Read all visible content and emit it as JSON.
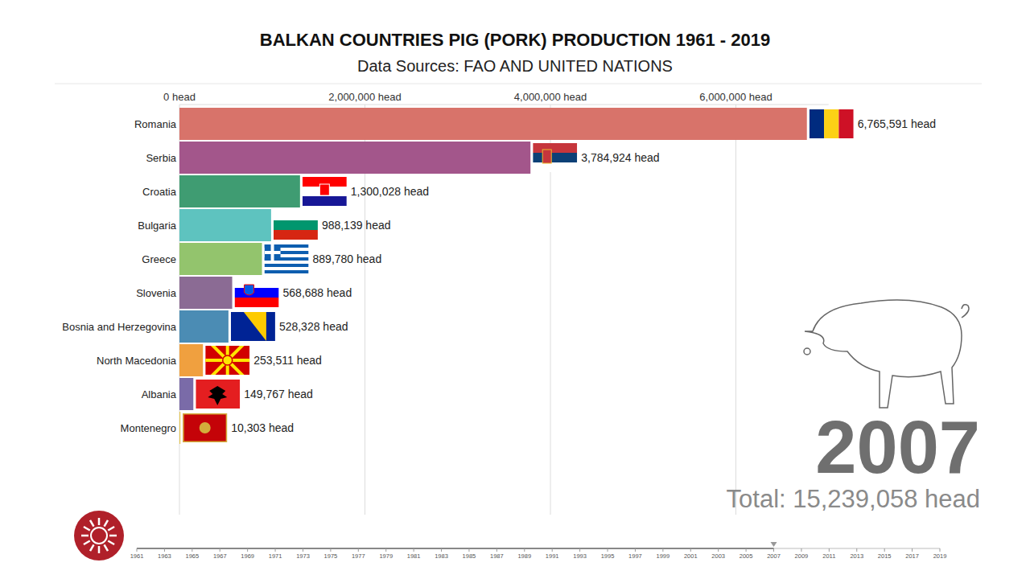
{
  "chart_data": {
    "type": "bar",
    "orientation": "horizontal",
    "title": "BALKAN COUNTRIES PIG (PORK) PRODUCTION 1961 - 2019",
    "subtitle": "Data Sources: FAO AND UNITED NATIONS",
    "categories": [
      "Romania",
      "Serbia",
      "Croatia",
      "Bulgaria",
      "Greece",
      "Slovenia",
      "Bosnia and Herzegovina",
      "North Macedonia",
      "Albania",
      "Montenegro"
    ],
    "values": [
      6765591,
      3784924,
      1300028,
      988139,
      889780,
      568688,
      528328,
      253511,
      149767,
      10303
    ],
    "value_labels": [
      "6,765,591 head",
      "3,784,924 head",
      "1,300,028 head",
      "988,139 head",
      "889,780 head",
      "568,688 head",
      "528,328 head",
      "253,511 head",
      "149,767 head",
      "10,303 head"
    ],
    "colors": [
      "#d8736a",
      "#a3568b",
      "#3f9c72",
      "#5ec3bf",
      "#93c46d",
      "#8b6b94",
      "#4b8cb4",
      "#f0a03f",
      "#7a6ba8",
      "#e6c64f"
    ],
    "xlim": [
      0,
      7000000
    ],
    "xticks": [
      {
        "value": 0,
        "label": "0 head"
      },
      {
        "value": 2000000,
        "label": "2,000,000 head"
      },
      {
        "value": 4000000,
        "label": "4,000,000 head"
      },
      {
        "value": 6000000,
        "label": "6,000,000 head"
      }
    ],
    "grid": true,
    "data_labels": true,
    "year": 2007,
    "total_label": "Total: 15,239,058 head",
    "timeline_range": [
      1961,
      2019
    ],
    "timeline_ticks": [
      1961,
      1963,
      1965,
      1967,
      1969,
      1971,
      1973,
      1975,
      1977,
      1979,
      1981,
      1983,
      1985,
      1987,
      1989,
      1991,
      1993,
      1995,
      1997,
      1999,
      2001,
      2003,
      2005,
      2007,
      2009,
      2011,
      2013,
      2015,
      2017,
      2019
    ]
  }
}
